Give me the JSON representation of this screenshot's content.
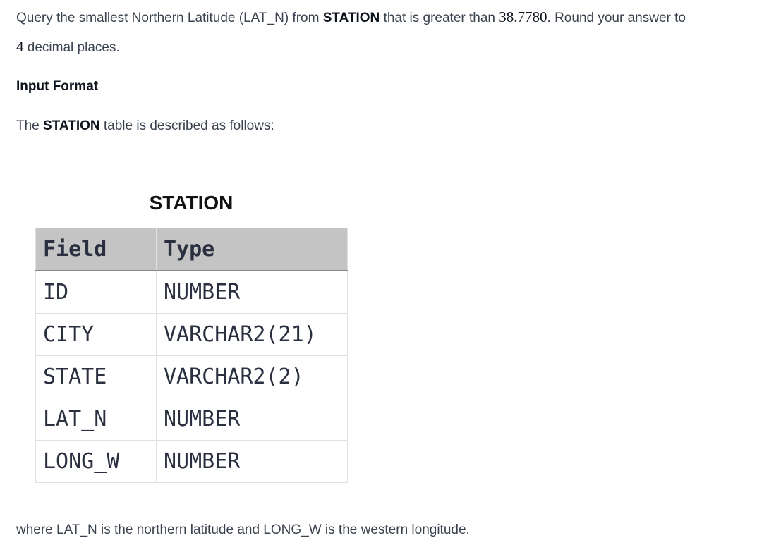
{
  "problem": {
    "line1_a": "Query the smallest Northern Latitude (LAT_N) from ",
    "line1_b": "STATION",
    "line1_c": " that is greater than ",
    "line1_num": "38.7780",
    "line1_d": ". Round your answer to",
    "line2_num": "4",
    "line2_b": " decimal places."
  },
  "input_format": {
    "heading": "Input Format",
    "desc_a": "The ",
    "desc_b": "STATION",
    "desc_c": " table is described as follows:"
  },
  "table": {
    "caption": "STATION",
    "headers": [
      "Field",
      "Type"
    ],
    "rows": [
      [
        "ID",
        "NUMBER"
      ],
      [
        "CITY",
        "VARCHAR2(21)"
      ],
      [
        "STATE",
        "VARCHAR2(2)"
      ],
      [
        "LAT_N",
        "NUMBER"
      ],
      [
        "LONG_W",
        "NUMBER"
      ]
    ]
  },
  "footer": "where LAT_N is the northern latitude and LONG_W is the western longitude."
}
